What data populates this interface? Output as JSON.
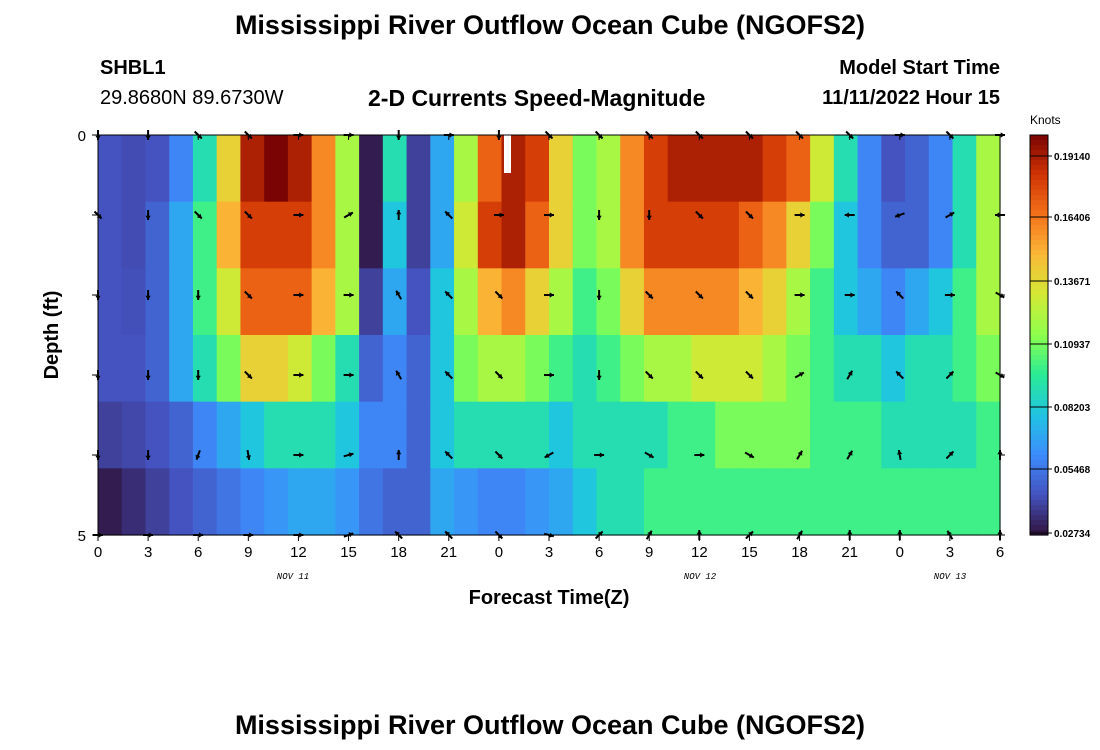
{
  "title": "Mississippi River Outflow Ocean Cube (NGOFS2)",
  "station": {
    "id": "SHBL1",
    "coords": "29.8680N  89.6730W"
  },
  "model": {
    "label": "Model Start Time",
    "time": "11/11/2022 Hour 15"
  },
  "chart_data": {
    "type": "heatmap",
    "title": "2-D Currents Speed-Magnitude",
    "xlabel": "Forecast Time(Z)",
    "ylabel": "Depth (ft)",
    "x_tick_labels": [
      "0",
      "3",
      "6",
      "9",
      "12",
      "15",
      "18",
      "21",
      "0",
      "3",
      "6",
      "9",
      "12",
      "15",
      "18",
      "21",
      "0",
      "3",
      "6"
    ],
    "date_labels": [
      "NOV 11",
      "NOV 12",
      "NOV 13"
    ],
    "y_tick_labels": [
      "0",
      "5"
    ],
    "ylim": [
      0,
      5
    ],
    "x_hours": [
      0,
      54
    ],
    "depth_layers": 5,
    "colorbar": {
      "unit": "Knots",
      "tick_labels": [
        "0.19140",
        "0.16406",
        "0.13671",
        "0.10937",
        "0.08203",
        "0.05468",
        "0.02734"
      ],
      "range": [
        0.02734,
        0.2
      ]
    },
    "speed_matrix": [
      [
        0.045,
        0.043,
        0.045,
        0.06,
        0.09,
        0.14,
        0.19,
        0.2,
        0.19,
        0.16,
        0.12,
        0.03,
        0.09,
        0.04,
        0.07,
        0.12,
        0.17,
        0.19,
        0.18,
        0.14,
        0.11,
        0.12,
        0.16,
        0.18,
        0.19,
        0.19,
        0.19,
        0.19,
        0.18,
        0.17,
        0.13,
        0.09,
        0.06,
        0.045,
        0.05,
        0.06,
        0.09,
        0.12
      ],
      [
        0.045,
        0.043,
        0.05,
        0.07,
        0.1,
        0.15,
        0.18,
        0.18,
        0.18,
        0.16,
        0.12,
        0.03,
        0.08,
        0.04,
        0.07,
        0.13,
        0.18,
        0.19,
        0.17,
        0.14,
        0.11,
        0.12,
        0.16,
        0.18,
        0.18,
        0.18,
        0.18,
        0.17,
        0.16,
        0.14,
        0.11,
        0.08,
        0.06,
        0.05,
        0.05,
        0.06,
        0.09,
        0.12
      ],
      [
        0.045,
        0.044,
        0.05,
        0.07,
        0.1,
        0.13,
        0.17,
        0.17,
        0.17,
        0.15,
        0.12,
        0.04,
        0.07,
        0.045,
        0.08,
        0.12,
        0.15,
        0.16,
        0.14,
        0.12,
        0.1,
        0.11,
        0.14,
        0.16,
        0.16,
        0.16,
        0.16,
        0.15,
        0.14,
        0.12,
        0.1,
        0.08,
        0.07,
        0.06,
        0.07,
        0.08,
        0.1,
        0.12
      ],
      [
        0.045,
        0.045,
        0.05,
        0.07,
        0.09,
        0.11,
        0.14,
        0.14,
        0.13,
        0.11,
        0.09,
        0.05,
        0.06,
        0.05,
        0.08,
        0.11,
        0.12,
        0.12,
        0.11,
        0.1,
        0.09,
        0.1,
        0.11,
        0.12,
        0.12,
        0.13,
        0.13,
        0.13,
        0.12,
        0.11,
        0.1,
        0.09,
        0.09,
        0.08,
        0.09,
        0.09,
        0.1,
        0.11
      ],
      [
        0.04,
        0.042,
        0.045,
        0.05,
        0.06,
        0.07,
        0.08,
        0.09,
        0.09,
        0.09,
        0.08,
        0.06,
        0.06,
        0.05,
        0.08,
        0.09,
        0.09,
        0.09,
        0.09,
        0.08,
        0.09,
        0.09,
        0.09,
        0.09,
        0.1,
        0.1,
        0.11,
        0.11,
        0.11,
        0.11,
        0.1,
        0.1,
        0.1,
        0.09,
        0.09,
        0.09,
        0.09,
        0.1
      ],
      [
        0.03,
        0.035,
        0.04,
        0.045,
        0.05,
        0.055,
        0.06,
        0.065,
        0.07,
        0.07,
        0.065,
        0.055,
        0.05,
        0.05,
        0.07,
        0.065,
        0.06,
        0.06,
        0.065,
        0.07,
        0.08,
        0.09,
        0.09,
        0.1,
        0.1,
        0.1,
        0.1,
        0.1,
        0.1,
        0.1,
        0.1,
        0.1,
        0.1,
        0.1,
        0.1,
        0.1,
        0.1,
        0.1
      ]
    ],
    "arrow_hours": [
      0,
      3,
      6,
      9,
      12,
      15,
      18,
      21,
      24,
      27,
      30,
      33,
      36,
      39,
      42,
      45,
      48,
      51,
      54
    ],
    "arrow_angles_deg": [
      [
        270,
        270,
        315,
        315,
        0,
        0,
        270,
        0,
        270,
        315,
        315,
        315,
        315,
        315,
        315,
        315,
        0,
        315,
        0
      ],
      [
        315,
        270,
        315,
        315,
        0,
        30,
        90,
        135,
        0,
        0,
        270,
        270,
        315,
        315,
        0,
        180,
        200,
        30,
        180
      ],
      [
        270,
        270,
        270,
        315,
        0,
        0,
        120,
        135,
        315,
        0,
        270,
        315,
        315,
        315,
        0,
        0,
        135,
        0,
        330
      ],
      [
        270,
        270,
        270,
        315,
        0,
        0,
        120,
        135,
        315,
        0,
        270,
        315,
        315,
        315,
        30,
        60,
        135,
        45,
        330
      ],
      [
        270,
        270,
        250,
        280,
        0,
        15,
        90,
        135,
        315,
        210,
        0,
        330,
        0,
        330,
        60,
        60,
        100,
        45,
        90
      ],
      [
        0,
        0,
        0,
        0,
        0,
        20,
        135,
        135,
        315,
        345,
        45,
        60,
        90,
        45,
        60,
        90,
        90,
        120,
        90
      ]
    ]
  }
}
